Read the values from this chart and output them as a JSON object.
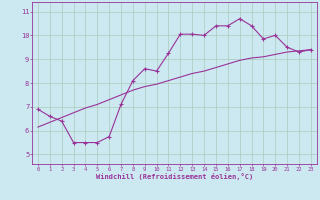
{
  "xlabel": "Windchill (Refroidissement éolien,°C)",
  "bg_color": "#cce8f0",
  "line_color": "#993399",
  "grid_color": "#aaccbb",
  "x_ticks": [
    0,
    1,
    2,
    3,
    4,
    5,
    6,
    7,
    8,
    9,
    10,
    11,
    12,
    13,
    14,
    15,
    16,
    17,
    18,
    19,
    20,
    21,
    22,
    23
  ],
  "y_ticks": [
    5,
    6,
    7,
    8,
    9,
    10,
    11
  ],
  "ylim": [
    4.6,
    11.4
  ],
  "xlim": [
    -0.5,
    23.5
  ],
  "curve1_x": [
    0,
    1,
    2,
    3,
    4,
    5,
    6,
    7,
    8,
    9,
    10,
    11,
    12,
    13,
    14,
    15,
    16,
    17,
    18,
    19,
    20,
    21,
    22,
    23
  ],
  "curve1_y": [
    6.9,
    6.6,
    6.4,
    5.5,
    5.5,
    5.5,
    5.75,
    7.1,
    8.1,
    8.6,
    8.5,
    9.25,
    10.05,
    10.05,
    10.0,
    10.4,
    10.4,
    10.7,
    10.4,
    9.85,
    10.0,
    9.5,
    9.3,
    9.4
  ],
  "curve2_x": [
    0,
    1,
    2,
    3,
    4,
    5,
    6,
    7,
    8,
    9,
    10,
    11,
    12,
    13,
    14,
    15,
    16,
    17,
    18,
    19,
    20,
    21,
    22,
    23
  ],
  "curve2_y": [
    6.15,
    6.35,
    6.55,
    6.75,
    6.95,
    7.1,
    7.3,
    7.5,
    7.7,
    7.85,
    7.95,
    8.1,
    8.25,
    8.4,
    8.5,
    8.65,
    8.8,
    8.95,
    9.05,
    9.1,
    9.2,
    9.3,
    9.35,
    9.4
  ]
}
